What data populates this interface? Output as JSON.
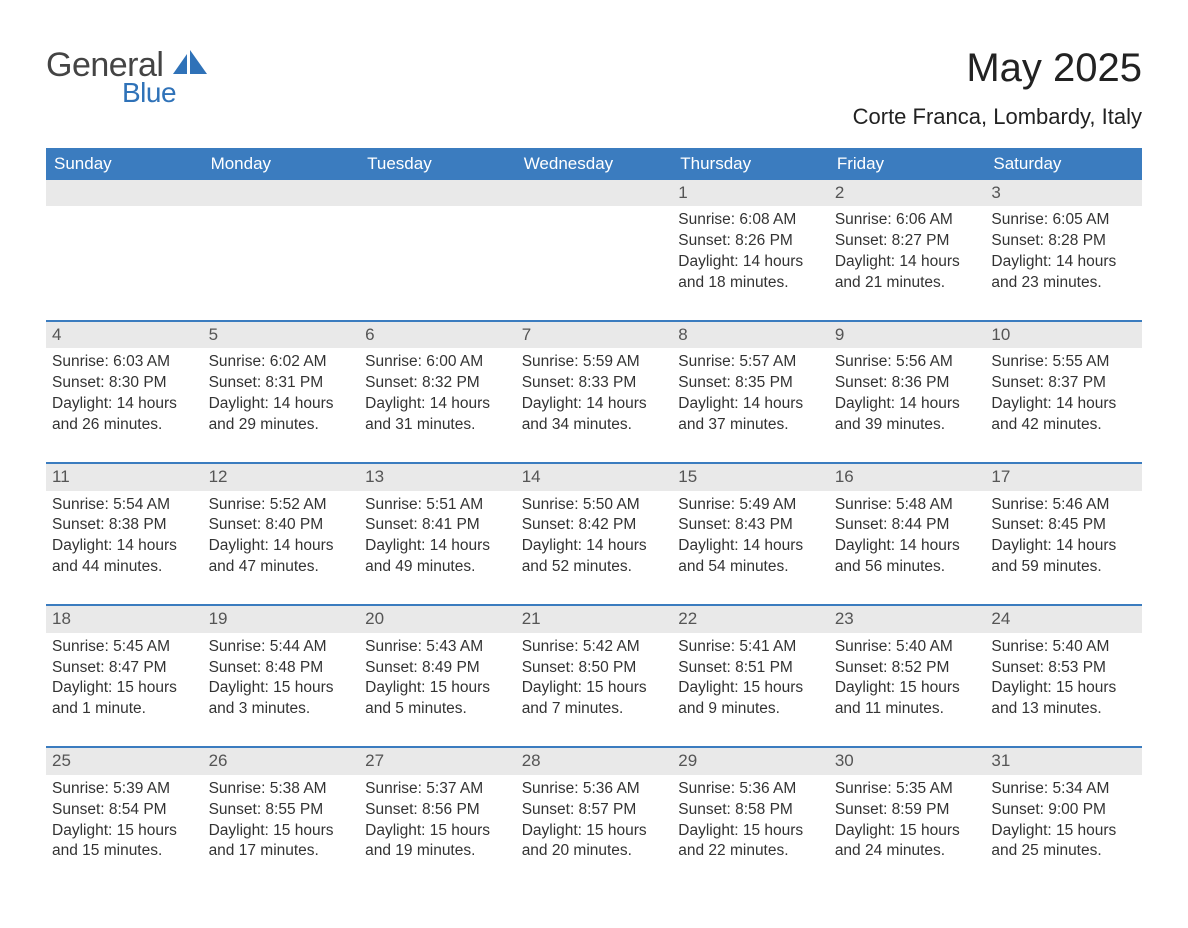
{
  "brand": {
    "word1": "General",
    "word2": "Blue",
    "accent_color": "#2f72b8"
  },
  "title": "May 2025",
  "location": "Corte Franca, Lombardy, Italy",
  "colors": {
    "header_bg": "#3b7cbf",
    "header_fg": "#ffffff",
    "row_divider": "#3b7cbf",
    "daynum_bg": "#e9e9e9",
    "text": "#333333",
    "page_bg": "#ffffff"
  },
  "day_headers": [
    "Sunday",
    "Monday",
    "Tuesday",
    "Wednesday",
    "Thursday",
    "Friday",
    "Saturday"
  ],
  "weeks": [
    [
      null,
      null,
      null,
      null,
      {
        "n": "1",
        "sunrise": "6:08 AM",
        "sunset": "8:26 PM",
        "daylight": "14 hours and 18 minutes."
      },
      {
        "n": "2",
        "sunrise": "6:06 AM",
        "sunset": "8:27 PM",
        "daylight": "14 hours and 21 minutes."
      },
      {
        "n": "3",
        "sunrise": "6:05 AM",
        "sunset": "8:28 PM",
        "daylight": "14 hours and 23 minutes."
      }
    ],
    [
      {
        "n": "4",
        "sunrise": "6:03 AM",
        "sunset": "8:30 PM",
        "daylight": "14 hours and 26 minutes."
      },
      {
        "n": "5",
        "sunrise": "6:02 AM",
        "sunset": "8:31 PM",
        "daylight": "14 hours and 29 minutes."
      },
      {
        "n": "6",
        "sunrise": "6:00 AM",
        "sunset": "8:32 PM",
        "daylight": "14 hours and 31 minutes."
      },
      {
        "n": "7",
        "sunrise": "5:59 AM",
        "sunset": "8:33 PM",
        "daylight": "14 hours and 34 minutes."
      },
      {
        "n": "8",
        "sunrise": "5:57 AM",
        "sunset": "8:35 PM",
        "daylight": "14 hours and 37 minutes."
      },
      {
        "n": "9",
        "sunrise": "5:56 AM",
        "sunset": "8:36 PM",
        "daylight": "14 hours and 39 minutes."
      },
      {
        "n": "10",
        "sunrise": "5:55 AM",
        "sunset": "8:37 PM",
        "daylight": "14 hours and 42 minutes."
      }
    ],
    [
      {
        "n": "11",
        "sunrise": "5:54 AM",
        "sunset": "8:38 PM",
        "daylight": "14 hours and 44 minutes."
      },
      {
        "n": "12",
        "sunrise": "5:52 AM",
        "sunset": "8:40 PM",
        "daylight": "14 hours and 47 minutes."
      },
      {
        "n": "13",
        "sunrise": "5:51 AM",
        "sunset": "8:41 PM",
        "daylight": "14 hours and 49 minutes."
      },
      {
        "n": "14",
        "sunrise": "5:50 AM",
        "sunset": "8:42 PM",
        "daylight": "14 hours and 52 minutes."
      },
      {
        "n": "15",
        "sunrise": "5:49 AM",
        "sunset": "8:43 PM",
        "daylight": "14 hours and 54 minutes."
      },
      {
        "n": "16",
        "sunrise": "5:48 AM",
        "sunset": "8:44 PM",
        "daylight": "14 hours and 56 minutes."
      },
      {
        "n": "17",
        "sunrise": "5:46 AM",
        "sunset": "8:45 PM",
        "daylight": "14 hours and 59 minutes."
      }
    ],
    [
      {
        "n": "18",
        "sunrise": "5:45 AM",
        "sunset": "8:47 PM",
        "daylight": "15 hours and 1 minute."
      },
      {
        "n": "19",
        "sunrise": "5:44 AM",
        "sunset": "8:48 PM",
        "daylight": "15 hours and 3 minutes."
      },
      {
        "n": "20",
        "sunrise": "5:43 AM",
        "sunset": "8:49 PM",
        "daylight": "15 hours and 5 minutes."
      },
      {
        "n": "21",
        "sunrise": "5:42 AM",
        "sunset": "8:50 PM",
        "daylight": "15 hours and 7 minutes."
      },
      {
        "n": "22",
        "sunrise": "5:41 AM",
        "sunset": "8:51 PM",
        "daylight": "15 hours and 9 minutes."
      },
      {
        "n": "23",
        "sunrise": "5:40 AM",
        "sunset": "8:52 PM",
        "daylight": "15 hours and 11 minutes."
      },
      {
        "n": "24",
        "sunrise": "5:40 AM",
        "sunset": "8:53 PM",
        "daylight": "15 hours and 13 minutes."
      }
    ],
    [
      {
        "n": "25",
        "sunrise": "5:39 AM",
        "sunset": "8:54 PM",
        "daylight": "15 hours and 15 minutes."
      },
      {
        "n": "26",
        "sunrise": "5:38 AM",
        "sunset": "8:55 PM",
        "daylight": "15 hours and 17 minutes."
      },
      {
        "n": "27",
        "sunrise": "5:37 AM",
        "sunset": "8:56 PM",
        "daylight": "15 hours and 19 minutes."
      },
      {
        "n": "28",
        "sunrise": "5:36 AM",
        "sunset": "8:57 PM",
        "daylight": "15 hours and 20 minutes."
      },
      {
        "n": "29",
        "sunrise": "5:36 AM",
        "sunset": "8:58 PM",
        "daylight": "15 hours and 22 minutes."
      },
      {
        "n": "30",
        "sunrise": "5:35 AM",
        "sunset": "8:59 PM",
        "daylight": "15 hours and 24 minutes."
      },
      {
        "n": "31",
        "sunrise": "5:34 AM",
        "sunset": "9:00 PM",
        "daylight": "15 hours and 25 minutes."
      }
    ]
  ],
  "labels": {
    "sunrise": "Sunrise:",
    "sunset": "Sunset:",
    "daylight": "Daylight:"
  }
}
